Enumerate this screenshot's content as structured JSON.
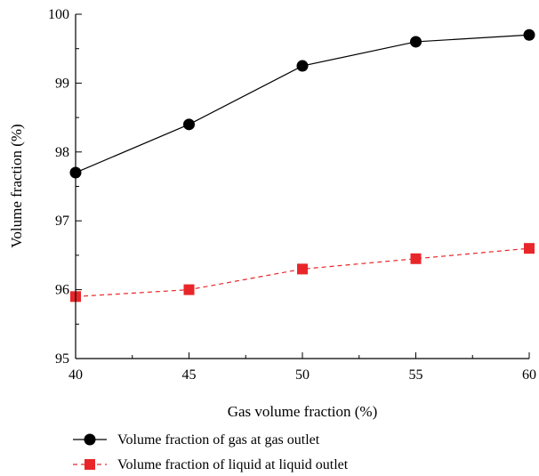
{
  "chart_data": {
    "type": "line",
    "title": "",
    "xlabel": "Gas volume fraction (%)",
    "ylabel": "Volume fraction (%)",
    "x": [
      40,
      45,
      50,
      55,
      60
    ],
    "xlim": [
      40,
      60
    ],
    "ylim": [
      95,
      100
    ],
    "xticks": [
      40,
      45,
      50,
      55,
      60
    ],
    "yticks": [
      95,
      96,
      97,
      98,
      99,
      100
    ],
    "grid": false,
    "legend_position": "bottom",
    "series": [
      {
        "name": "Volume fraction of gas at gas outlet",
        "values": [
          97.7,
          98.4,
          99.25,
          99.6,
          99.7
        ],
        "color": "#000000",
        "marker": "circle",
        "line_style": "solid"
      },
      {
        "name": "Volume fraction of liquid at liquid outlet",
        "values": [
          95.9,
          96.0,
          96.3,
          96.45,
          96.6
        ],
        "color": "#e8262a",
        "marker": "square",
        "line_style": "dashed"
      }
    ]
  }
}
